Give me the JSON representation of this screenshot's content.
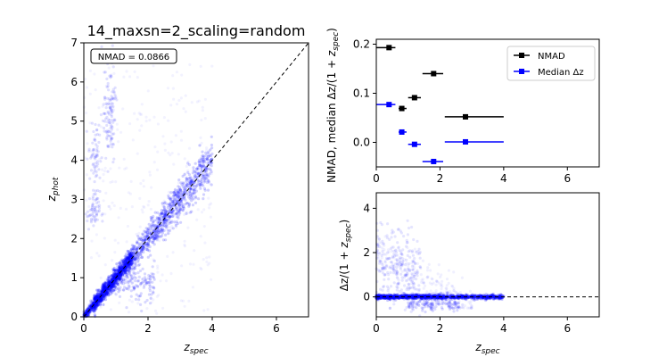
{
  "chart_data": [
    {
      "id": "main",
      "type": "scatter",
      "title": "14_maxsn=2_scaling=random",
      "xlabel": "z_spec",
      "ylabel": "z_phot",
      "xlim": [
        0,
        7
      ],
      "ylim": [
        0,
        7
      ],
      "xticks": [
        0,
        2,
        4,
        6
      ],
      "yticks": [
        0,
        1,
        2,
        3,
        4,
        5,
        6,
        7
      ],
      "annotation": "NMAD = 0.0866",
      "reference_line": "y = x",
      "point_color": "#0000ff"
    },
    {
      "id": "stats",
      "type": "scatter",
      "xlabel": "",
      "ylabel": "NMAD, median Δz/(1 + z_spec)",
      "xlim": [
        0,
        7
      ],
      "ylim": [
        -0.05,
        0.21
      ],
      "xticks": [
        0,
        2,
        4,
        6
      ],
      "yticks": [
        0.0,
        0.1,
        0.2
      ],
      "legend_position": "top-right",
      "series": [
        {
          "name": "NMAD",
          "color": "#000000",
          "points": [
            {
              "x": 0.4,
              "xmin": 0.0,
              "xmax": 0.6,
              "y": 0.193
            },
            {
              "x": 0.8,
              "xmin": 0.7,
              "xmax": 0.95,
              "y": 0.069
            },
            {
              "x": 1.2,
              "xmin": 1.0,
              "xmax": 1.4,
              "y": 0.091
            },
            {
              "x": 1.8,
              "xmin": 1.45,
              "xmax": 2.1,
              "y": 0.14
            },
            {
              "x": 2.8,
              "xmin": 2.15,
              "xmax": 4.0,
              "y": 0.052
            }
          ]
        },
        {
          "name": "Median Δz",
          "color": "#0000ff",
          "points": [
            {
              "x": 0.4,
              "xmin": 0.0,
              "xmax": 0.6,
              "y": 0.077
            },
            {
              "x": 0.8,
              "xmin": 0.7,
              "xmax": 0.95,
              "y": 0.021
            },
            {
              "x": 1.2,
              "xmin": 1.0,
              "xmax": 1.4,
              "y": -0.004
            },
            {
              "x": 1.8,
              "xmin": 1.45,
              "xmax": 2.1,
              "y": -0.039
            },
            {
              "x": 2.8,
              "xmin": 2.15,
              "xmax": 4.0,
              "y": 0.001
            }
          ]
        }
      ]
    },
    {
      "id": "residual",
      "type": "scatter",
      "xlabel": "z_spec",
      "ylabel": "Δz/(1 + z_spec)",
      "xlim": [
        0,
        7
      ],
      "ylim": [
        -0.9,
        4.7
      ],
      "xticks": [
        0,
        2,
        4,
        6
      ],
      "yticks": [
        0,
        2,
        4
      ],
      "reference_line": "y = 0",
      "point_color": "#0000ff"
    }
  ]
}
